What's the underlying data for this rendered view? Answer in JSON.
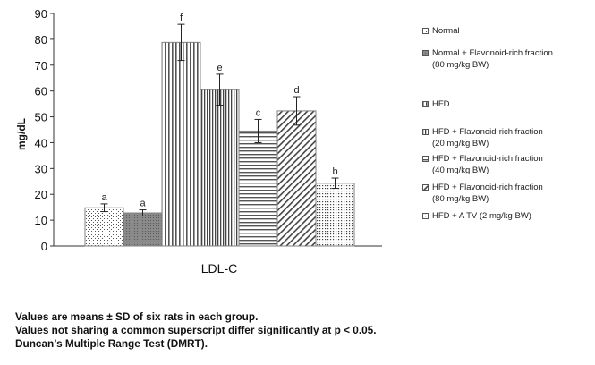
{
  "chart_data": {
    "type": "bar",
    "categories": [
      "LDL-C"
    ],
    "xlabel": "LDL-C",
    "ylabel": "mg/dL",
    "ylim": [
      0,
      90
    ],
    "yticks": [
      0,
      10,
      20,
      30,
      40,
      50,
      60,
      70,
      80,
      90
    ],
    "grid": false,
    "legend_position": "right",
    "series": [
      {
        "name": "Normal",
        "values": [
          14.8
        ],
        "error": [
          1.5
        ],
        "letter": "a",
        "pattern": "dots",
        "color": "#808080"
      },
      {
        "name": "Normal + Flavonoid-rich fraction\n(80 mg/kg BW)",
        "values": [
          12.8
        ],
        "error": [
          1.2
        ],
        "letter": "a",
        "pattern": "dark",
        "color": "#808080"
      },
      {
        "name": "HFD",
        "values": [
          78.8
        ],
        "error": [
          7.0
        ],
        "letter": "f",
        "pattern": "vlines",
        "color": "#808080"
      },
      {
        "name": "HFD + Flavonoid-rich fraction\n(20 mg/kg BW)",
        "values": [
          60.5
        ],
        "error": [
          6.0
        ],
        "letter": "e",
        "pattern": "vlines-dense",
        "color": "#808080"
      },
      {
        "name": "HFD + Flavonoid-rich fraction\n(40 mg/kg BW)",
        "values": [
          44.5
        ],
        "error": [
          4.5
        ],
        "letter": "c",
        "pattern": "hlines",
        "color": "#808080"
      },
      {
        "name": "HFD + Flavonoid-rich fraction\n(80 mg/kg BW)",
        "values": [
          52.3
        ],
        "error": [
          5.5
        ],
        "letter": "d",
        "pattern": "diag",
        "color": "#808080"
      },
      {
        "name": "HFD + A TV (2 mg/kg BW)",
        "values": [
          24.3
        ],
        "error": [
          2.0
        ],
        "letter": "b",
        "pattern": "dots-dense",
        "color": "#808080"
      }
    ]
  },
  "footnote": {
    "line1": "Values are means ± SD of six rats in each group.",
    "line2": "Values not sharing a common superscript differ significantly at p < 0.05.",
    "line3": "Duncan’s Multiple Range Test (DMRT)."
  }
}
